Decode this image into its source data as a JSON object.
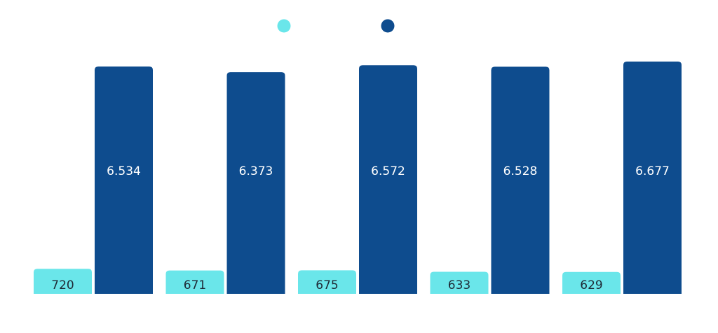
{
  "chart_data": {
    "type": "bar",
    "categories": [
      "",
      "",
      "",
      "",
      ""
    ],
    "series": [
      {
        "color": "#6ae6ea",
        "values": [
          720,
          671,
          675,
          633,
          629
        ],
        "labels": [
          "720",
          "671",
          "675",
          "633",
          "629"
        ]
      },
      {
        "color": "#0e4c8e",
        "values": [
          6534,
          6373,
          6572,
          6528,
          6677
        ],
        "labels": [
          "6.534",
          "6.373",
          "6.572",
          "6.528",
          "6.677"
        ]
      }
    ],
    "ylim": [
      0,
      6677
    ],
    "legend": "top-center",
    "grid": false
  }
}
